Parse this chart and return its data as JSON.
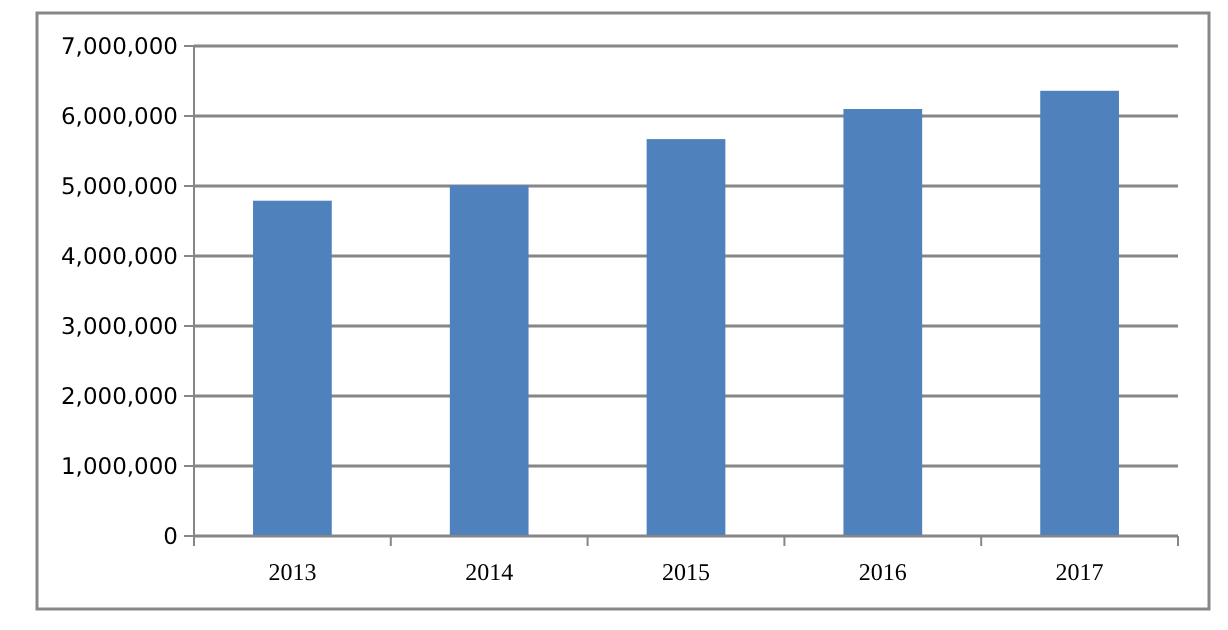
{
  "chart_data": {
    "type": "bar",
    "categories": [
      "2013",
      "2014",
      "2015",
      "2016",
      "2017"
    ],
    "values": [
      4790000,
      5010000,
      5670000,
      6100000,
      6360000
    ],
    "color": "#4f81bd",
    "ylim": [
      0,
      7000000
    ],
    "yticks": [
      {
        "value": 0,
        "label": "0"
      },
      {
        "value": 1000000,
        "label": "1,000,000"
      },
      {
        "value": 2000000,
        "label": "2,000,000"
      },
      {
        "value": 3000000,
        "label": "3,000,000"
      },
      {
        "value": 4000000,
        "label": "4,000,000"
      },
      {
        "value": 5000000,
        "label": "5,000,000"
      },
      {
        "value": 6000000,
        "label": "6,000,000"
      },
      {
        "value": 7000000,
        "label": "7,000,000"
      }
    ],
    "grid": "y"
  }
}
